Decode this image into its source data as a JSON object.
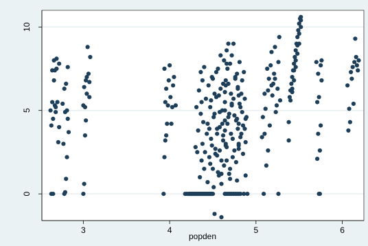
{
  "chart_data": {
    "type": "scatter",
    "title": "",
    "xlabel": "popden",
    "ylabel": "",
    "xlim": [
      2.52,
      6.25
    ],
    "ylim": [
      -1.6,
      11.0
    ],
    "xticks": [
      "3",
      "4",
      "5",
      "6"
    ],
    "yticks": [
      "0",
      "5",
      "10"
    ],
    "grid": "horizontal",
    "legend": "none",
    "colors": {
      "background": "#eaf2f3",
      "plot_area": "#ffffff",
      "marker": "#1e3f5a",
      "gridline": "#e4ecee",
      "frame": "#000000"
    },
    "series": [
      {
        "x": [
          2.62,
          2.63,
          2.63,
          2.64,
          2.64,
          2.65,
          2.65,
          2.66,
          2.66,
          2.67,
          2.67,
          2.68,
          2.68,
          2.69,
          2.69,
          2.7,
          2.71,
          2.72,
          2.72,
          2.76,
          2.77,
          2.78,
          2.78,
          2.79,
          2.79,
          2.8,
          2.8,
          2.81,
          2.81,
          2.82,
          2.82,
          2.83,
          3.0,
          3.0,
          3.01,
          3.01,
          3.02,
          3.02,
          3.03,
          3.03,
          3.04,
          3.04,
          3.05,
          3.06,
          3.07,
          3.07,
          3.08,
          3.93,
          3.94,
          3.94,
          3.95,
          3.95,
          3.96,
          3.96,
          3.97,
          3.98,
          3.99,
          4.0,
          4.01,
          4.02,
          4.03,
          4.04,
          4.05,
          4.07,
          4.18,
          4.2,
          4.22,
          4.23,
          4.24,
          4.25,
          4.26,
          4.27,
          4.28,
          4.29,
          4.3,
          4.31,
          4.32,
          4.33,
          4.34,
          4.35,
          4.36,
          4.37,
          4.38,
          4.39,
          4.4,
          4.41,
          4.42,
          4.43,
          4.44,
          4.45,
          4.46,
          4.47,
          4.48,
          4.49,
          4.5,
          4.3,
          4.31,
          4.32,
          4.33,
          4.34,
          4.35,
          4.36,
          4.36,
          4.37,
          4.37,
          4.38,
          4.38,
          4.39,
          4.4,
          4.4,
          4.41,
          4.42,
          4.43,
          4.44,
          4.45,
          4.46,
          4.47,
          4.48,
          4.49,
          4.5,
          4.51,
          4.52,
          4.53,
          4.54,
          4.55,
          4.56,
          4.57,
          4.58,
          4.59,
          4.6,
          4.61,
          4.62,
          4.63,
          4.64,
          4.65,
          4.44,
          4.46,
          4.47,
          4.48,
          4.49,
          4.5,
          4.51,
          4.52,
          4.53,
          4.54,
          4.55,
          4.56,
          4.57,
          4.58,
          4.59,
          4.6,
          4.61,
          4.62,
          4.63,
          4.64,
          4.65,
          4.66,
          4.52,
          4.55,
          4.58,
          4.6,
          4.62,
          4.64,
          4.66,
          4.68,
          4.7,
          4.72,
          4.64,
          4.65,
          4.66,
          4.67,
          4.68,
          4.69,
          4.7,
          4.71,
          4.72,
          4.73,
          4.74,
          4.75,
          4.76,
          4.77,
          4.78,
          4.79,
          4.8,
          4.64,
          4.65,
          4.66,
          4.67,
          4.68,
          4.69,
          4.7,
          4.71,
          4.72,
          4.73,
          4.74,
          4.75,
          4.76,
          4.77,
          4.78,
          4.79,
          4.8,
          4.64,
          4.66,
          4.68,
          4.7,
          4.72,
          4.74,
          4.76,
          4.78,
          4.8,
          4.82,
          4.78,
          4.79,
          4.8,
          4.81,
          4.82,
          4.83,
          4.84,
          4.85,
          4.86,
          4.87,
          4.88,
          4.89,
          4.9,
          4.8,
          4.81,
          4.82,
          4.83,
          4.84,
          4.85,
          4.86,
          4.87,
          4.88,
          4.6,
          4.8,
          4.88,
          5.07,
          5.08,
          5.09,
          5.1,
          5.11,
          5.12,
          5.13,
          5.14,
          5.15,
          5.16,
          5.17,
          5.18,
          5.19,
          5.2,
          5.21,
          5.22,
          5.23,
          5.24,
          5.25,
          5.26,
          5.27,
          5.28,
          5.1,
          5.14,
          5.18,
          5.22,
          5.26,
          5.38,
          5.39,
          5.4,
          5.41,
          5.42,
          5.43,
          5.44,
          5.45,
          5.46,
          5.47,
          5.48,
          5.49,
          5.5,
          5.51,
          5.52,
          5.38,
          5.4,
          5.42,
          5.44,
          5.46,
          5.48,
          5.5,
          5.52,
          5.42,
          5.44,
          5.46,
          5.48,
          5.5,
          5.52,
          5.7,
          5.71,
          5.71,
          5.72,
          5.72,
          5.73,
          5.73,
          5.74,
          5.74,
          5.75,
          5.75,
          5.76,
          5.76,
          6.06,
          6.07,
          6.08,
          6.09,
          6.1,
          6.11,
          6.12,
          6.13,
          6.14,
          6.15,
          6.16,
          6.17,
          6.18,
          6.19
        ],
        "y": [
          5.0,
          0.0,
          4.1,
          7.4,
          5.5,
          0.0,
          4.5,
          8.0,
          6.8,
          5.3,
          7.4,
          4.9,
          5.2,
          8.1,
          7.5,
          5.5,
          3.1,
          7.8,
          4.0,
          5.4,
          3.0,
          6.3,
          0.0,
          4.9,
          0.1,
          6.6,
          0.9,
          5.0,
          2.2,
          7.6,
          4.5,
          3.7,
          5.3,
          0.0,
          6.4,
          0.6,
          5.2,
          3.5,
          6.8,
          4.4,
          7.0,
          6.0,
          8.8,
          7.2,
          6.7,
          5.8,
          8.2,
          0.0,
          7.5,
          2.2,
          5.5,
          3.2,
          6.3,
          3.5,
          4.2,
          5.3,
          6.8,
          7.7,
          5.8,
          4.2,
          5.2,
          6.5,
          7.0,
          5.3,
          0.0,
          0.0,
          0.0,
          0.0,
          0.0,
          0.0,
          0.0,
          0.0,
          0.0,
          0.0,
          0.0,
          0.0,
          0.0,
          0.0,
          0.0,
          0.0,
          0.0,
          0.0,
          0.0,
          0.0,
          0.0,
          0.0,
          0.0,
          0.0,
          0.0,
          0.0,
          0.0,
          0.0,
          0.0,
          0.0,
          0.0,
          2.8,
          5.2,
          2.5,
          3.8,
          6.2,
          1.0,
          4.8,
          7.3,
          2.0,
          5.5,
          3.0,
          6.8,
          4.3,
          1.5,
          7.6,
          2.5,
          5.7,
          3.6,
          4.2,
          6.5,
          2.2,
          5.2,
          3.3,
          7.0,
          1.5,
          4.6,
          6.0,
          2.7,
          5.8,
          3.9,
          7.5,
          1.1,
          4.9,
          6.3,
          2.0,
          5.0,
          3.2,
          8.0,
          4.4,
          6.8,
          0.7,
          3.9,
          1.8,
          5.6,
          2.9,
          6.9,
          0.4,
          4.8,
          2.4,
          7.3,
          3.6,
          1.3,
          5.9,
          2.6,
          8.3,
          0.6,
          4.2,
          6.6,
          1.7,
          5.5,
          3.0,
          7.8,
          -1.2,
          2.3,
          4.0,
          1.2,
          3.5,
          6.1,
          2.8,
          4.6,
          0.9,
          5.3,
          3.8,
          6.5,
          2.0,
          7.5,
          9.0,
          4.8,
          1.5,
          6.0,
          8.3,
          3.3,
          5.7,
          2.6,
          7.0,
          4.4,
          0.8,
          6.3,
          3.0,
          5.0,
          2.9,
          8.6,
          4.2,
          6.6,
          1.2,
          7.8,
          3.6,
          5.4,
          2.2,
          9.0,
          4.7,
          6.9,
          1.9,
          7.2,
          3.9,
          5.9,
          0.0,
          0.0,
          0.0,
          0.0,
          0.0,
          0.0,
          0.0,
          0.0,
          0.0,
          0.0,
          4.5,
          6.4,
          2.9,
          7.9,
          5.2,
          3.6,
          6.8,
          4.1,
          0.0,
          5.7,
          3.1,
          4.6,
          0.0,
          2.7,
          5.4,
          3.4,
          6.0,
          4.9,
          2.4,
          7.3,
          3.9,
          1.1,
          -1.4,
          4.2,
          4.5,
          3.4,
          4.6,
          0.0,
          6.0,
          5.1,
          1.7,
          7.5,
          2.6,
          6.9,
          4.1,
          7.7,
          8.5,
          5.9,
          6.6,
          7.2,
          8.8,
          4.9,
          5.3,
          6.3,
          7.9,
          9.4,
          5.6,
          3.6,
          6.2,
          6.5,
          6.9,
          0.0,
          3.2,
          5.8,
          6.2,
          6.6,
          7.0,
          7.4,
          7.8,
          8.2,
          8.6,
          9.0,
          9.4,
          9.8,
          10.2,
          10.5,
          10.6,
          4.3,
          5.6,
          6.1,
          7.4,
          8.0,
          8.9,
          9.6,
          10.0,
          6.3,
          6.8,
          7.6,
          8.4,
          9.0,
          10.4,
          7.9,
          2.1,
          5.5,
          3.6,
          7.2,
          0.0,
          5.8,
          2.6,
          0.0,
          4.1,
          7.7,
          6.8,
          8.0,
          6.5,
          3.8,
          5.1,
          4.3,
          7.3,
          6.9,
          7.6,
          5.4,
          7.9,
          9.3,
          8.2,
          7.7,
          7.4,
          8.0
        ]
      }
    ]
  }
}
